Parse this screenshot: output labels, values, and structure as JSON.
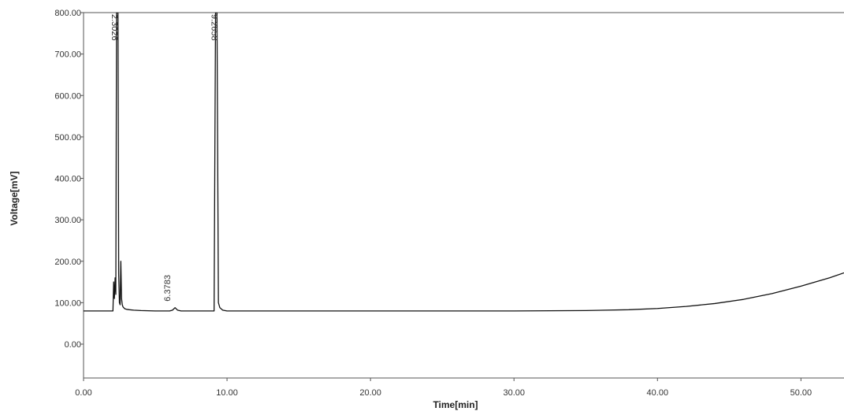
{
  "chart_data": {
    "type": "line",
    "title": "",
    "xlabel": "Time[min]",
    "ylabel": "Voltage[mV]",
    "xlim": [
      0,
      53
    ],
    "ylim": [
      -100,
      800
    ],
    "grid": false,
    "legend": "none",
    "x_ticks": [
      {
        "value": 0,
        "label": "0.00"
      },
      {
        "value": 10,
        "label": "10.00"
      },
      {
        "value": 20,
        "label": "20.00"
      },
      {
        "value": 30,
        "label": "30.00"
      },
      {
        "value": 40,
        "label": "40.00"
      },
      {
        "value": 50,
        "label": "50.00"
      }
    ],
    "y_ticks": [
      {
        "value": 0,
        "label": "0.00"
      },
      {
        "value": 100,
        "label": "100.00"
      },
      {
        "value": 200,
        "label": "200.00"
      },
      {
        "value": 300,
        "label": "300.00"
      },
      {
        "value": 400,
        "label": "400.00"
      },
      {
        "value": 500,
        "label": "500.00"
      },
      {
        "value": 600,
        "label": "600.00"
      },
      {
        "value": 700,
        "label": "700.00"
      },
      {
        "value": 800,
        "label": "800.00"
      }
    ],
    "peaks": [
      {
        "x": 2.3026,
        "label": "2.3026"
      },
      {
        "x": 6.3783,
        "label": "6.3783"
      },
      {
        "x": 9.2658,
        "label": "9.2658"
      }
    ],
    "series": [
      {
        "color": "#111111",
        "x": [
          0,
          2.05,
          2.1,
          2.15,
          2.2,
          2.25,
          2.3,
          2.3026,
          2.35,
          2.4,
          2.45,
          2.5,
          2.55,
          2.6,
          2.65,
          2.7,
          2.75,
          2.8,
          2.85,
          2.9,
          3.0,
          3.2,
          3.5,
          4.0,
          5.0,
          6.0,
          6.2,
          6.3783,
          6.55,
          6.8,
          7.5,
          8.5,
          9.1,
          9.2,
          9.2658,
          9.3,
          9.4,
          9.5,
          9.7,
          10.0,
          15,
          20,
          25,
          30,
          35,
          38,
          40,
          42,
          44,
          46,
          48,
          50,
          52,
          53
        ],
        "y": [
          80,
          80,
          150,
          110,
          160,
          120,
          800,
          800,
          800,
          800,
          170,
          100,
          95,
          200,
          110,
          95,
          90,
          88,
          86,
          85,
          84,
          83,
          82,
          81,
          80,
          80,
          82,
          88,
          82,
          80,
          80,
          80,
          80,
          800,
          800,
          800,
          100,
          88,
          82,
          80,
          80,
          80,
          80,
          80,
          81,
          83,
          86,
          91,
          98,
          108,
          122,
          140,
          160,
          172
        ]
      }
    ]
  }
}
